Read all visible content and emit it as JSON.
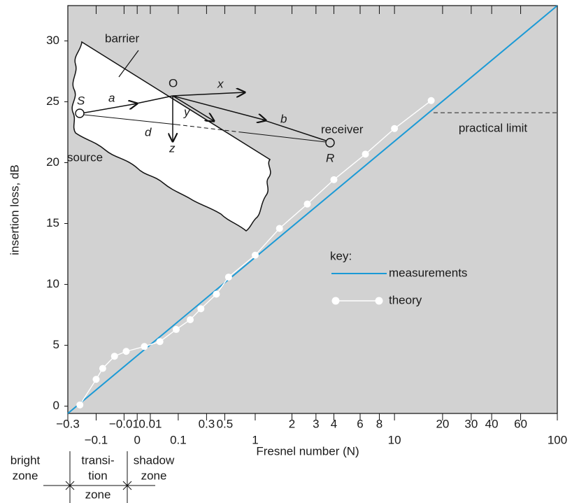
{
  "chart_data": {
    "type": "line",
    "xlabel": "Fresnel number (N)",
    "ylabel": "insertion loss, dB",
    "xlim": [
      -0.3,
      100
    ],
    "ylim": [
      -0.6,
      32.9
    ],
    "xticks": [
      {
        "value": -0.3,
        "label": "−0.3"
      },
      {
        "value": -0.01,
        "label": "−0.01"
      },
      0.01,
      0.3,
      0.5,
      2,
      3,
      4,
      6,
      8,
      20,
      30,
      40,
      60
    ],
    "xticks_major": [
      {
        "value": -0.1,
        "label": "−0.1"
      },
      0,
      0.1,
      1,
      10,
      100
    ],
    "yticks": [
      0,
      5,
      10,
      15,
      20,
      25,
      30
    ],
    "grid": false,
    "background": "#d2d2d2",
    "series": [
      {
        "name": "measurements",
        "color": "#1b9ad6",
        "x": [
          -0.3,
          100
        ],
        "values": [
          -0.6,
          32.9
        ]
      },
      {
        "name": "theory",
        "color": "#ffffff",
        "x": [
          -0.2,
          -0.1,
          -0.07,
          -0.03,
          -0.007,
          0.003,
          0.03,
          0.09,
          0.17,
          0.25,
          0.4,
          0.55,
          1,
          1.6,
          2.6,
          4,
          6.5,
          10,
          17
        ],
        "values": [
          0.1,
          2.2,
          3.1,
          4.1,
          4.5,
          4.9,
          5.3,
          6.3,
          7.1,
          8.0,
          9.2,
          10.6,
          12.4,
          14.6,
          16.6,
          18.6,
          20.7,
          22.8,
          25.1
        ]
      }
    ],
    "legend_title": "key:",
    "practical_limit": {
      "label": "practical limit",
      "value": 24.1
    },
    "zones": [
      {
        "lines": [
          "bright",
          "zone"
        ]
      },
      {
        "lines": [
          "transi-",
          "tion",
          "zone"
        ]
      },
      {
        "lines": [
          "shadow",
          "zone"
        ]
      }
    ],
    "inset_labels": {
      "barrier": "barrier",
      "O": "O",
      "x": "x",
      "a": "a",
      "S": "S",
      "y": "y",
      "b": "b",
      "d": "d",
      "receiver": "receiver",
      "z": "z",
      "source": "source",
      "R": "R"
    }
  }
}
